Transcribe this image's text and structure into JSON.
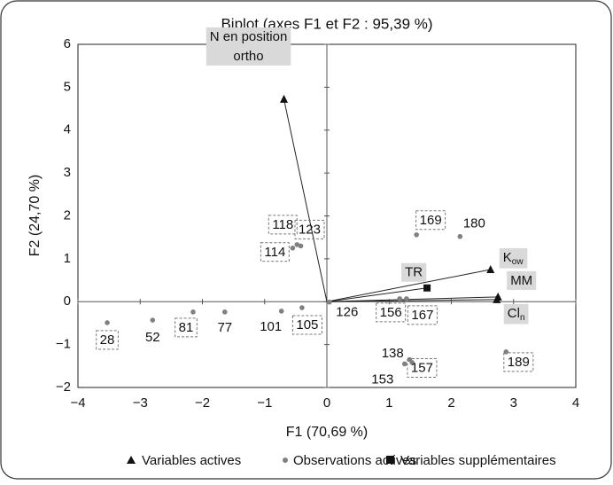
{
  "chart_data": {
    "type": "biplot",
    "title": "Biplot (axes F1 et F2 : 95,39 %)",
    "x_label": "F1 (70,69 %)",
    "y_label": "F2 (24,70 %)",
    "xlim": [
      -4,
      4
    ],
    "ylim": [
      -2,
      6
    ],
    "xticks": [
      {
        "value": -4,
        "label": "−4"
      },
      {
        "value": -3,
        "label": "−3"
      },
      {
        "value": -2,
        "label": "−2"
      },
      {
        "value": -1,
        "label": "−1"
      },
      0,
      1,
      2,
      3,
      4
    ],
    "yticks": [
      {
        "value": -2,
        "label": "−2"
      },
      {
        "value": -1,
        "label": "−1"
      },
      0,
      1,
      2,
      3,
      4,
      5,
      6
    ],
    "legend": [
      "Variables actives",
      "Observations actives",
      "Variables supplémentaires"
    ],
    "observations": {
      "color": "#808080",
      "labels": [
        "28",
        "52",
        "81",
        "77",
        "101",
        "105",
        "118",
        "123",
        "114",
        "126",
        "156",
        "167",
        "169",
        "180",
        "138",
        "153",
        "157",
        "189"
      ],
      "boxed": [
        true,
        false,
        true,
        false,
        false,
        true,
        true,
        true,
        true,
        false,
        true,
        true,
        true,
        false,
        false,
        false,
        true,
        true
      ],
      "x": [
        -3.53,
        -2.8,
        -2.15,
        -1.64,
        -0.73,
        -0.4,
        -0.48,
        -0.42,
        -0.55,
        0.04,
        1.17,
        1.28,
        1.44,
        2.14,
        1.37,
        1.25,
        1.33,
        2.88
      ],
      "y": [
        -0.49,
        -0.43,
        -0.24,
        -0.24,
        -0.22,
        -0.14,
        1.33,
        1.3,
        1.25,
        -0.01,
        0.07,
        0.07,
        1.56,
        1.52,
        -1.42,
        -1.45,
        -1.35,
        -1.17
      ]
    },
    "variables": [
      {
        "label_lines": [
          "N en position",
          "ortho"
        ],
        "x": -0.69,
        "y": 4.72
      },
      {
        "label": "K",
        "sub": "ow",
        "x": 2.63,
        "y": 0.75
      },
      {
        "label": "MM",
        "x": 2.75,
        "y": 0.11
      },
      {
        "label": "Cl",
        "sub": "n",
        "x": 2.73,
        "y": 0.05
      }
    ],
    "supplementary": [
      {
        "label": "TR",
        "x": 1.61,
        "y": 0.32
      }
    ]
  }
}
